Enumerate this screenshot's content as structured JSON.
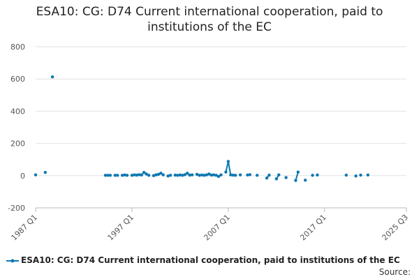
{
  "chart_data": {
    "type": "line",
    "title_lines": [
      "ESA10: CG: D74 Current international cooperation, paid to",
      "institutions of the EC"
    ],
    "xlabel": "",
    "ylabel": "",
    "x_ticks": [
      "1987 Q1",
      "1997 Q1",
      "2007 Q1",
      "2017 Q1",
      "2025 Q3"
    ],
    "y_ticks": [
      800,
      600,
      400,
      200,
      0,
      -200
    ],
    "ylim": [
      -200,
      800
    ],
    "xlim": [
      "1987 Q1",
      "2025 Q3"
    ],
    "grid": "horizontal",
    "legend_position": "bottom-left",
    "series": [
      {
        "name": "ESA10: CG: D74 Current international cooperation, paid to institutions of the EC",
        "color": "#0c78b1",
        "points": [
          {
            "x": "1987 Q1",
            "y": 5
          },
          {
            "x": "1988 Q1",
            "y": 20
          },
          {
            "x": "1988 Q4",
            "y": 613
          },
          {
            "x": "1994 Q2",
            "y": 2
          },
          {
            "x": "1994 Q3",
            "y": 2
          },
          {
            "x": "1994 Q4",
            "y": 2
          },
          {
            "x": "1995 Q2",
            "y": 2
          },
          {
            "x": "1995 Q3",
            "y": 2
          },
          {
            "x": "1996 Q1",
            "y": 2
          },
          {
            "x": "1996 Q2",
            "y": 4
          },
          {
            "x": "1996 Q3",
            "y": 2
          },
          {
            "x": "1997 Q1",
            "y": 2
          },
          {
            "x": "1997 Q2",
            "y": 5
          },
          {
            "x": "1997 Q3",
            "y": 3
          },
          {
            "x": "1997 Q4",
            "y": 6
          },
          {
            "x": "1998 Q1",
            "y": 4
          },
          {
            "x": "1998 Q2",
            "y": 20
          },
          {
            "x": "1998 Q3",
            "y": 10
          },
          {
            "x": "1998 Q4",
            "y": 2
          },
          {
            "x": "1999 Q2",
            "y": 0
          },
          {
            "x": "1999 Q3",
            "y": 5
          },
          {
            "x": "1999 Q4",
            "y": 8
          },
          {
            "x": "2000 Q1",
            "y": 15
          },
          {
            "x": "2000 Q2",
            "y": 5
          },
          {
            "x": "2000 Q4",
            "y": -2
          },
          {
            "x": "2001 Q1",
            "y": 2
          },
          {
            "x": "2001 Q3",
            "y": 3
          },
          {
            "x": "2001 Q4",
            "y": 2
          },
          {
            "x": "2002 Q1",
            "y": 4
          },
          {
            "x": "2002 Q2",
            "y": 2
          },
          {
            "x": "2002 Q3",
            "y": 6
          },
          {
            "x": "2002 Q4",
            "y": 15
          },
          {
            "x": "2003 Q1",
            "y": 3
          },
          {
            "x": "2003 Q2",
            "y": 5
          },
          {
            "x": "2003 Q4",
            "y": 8
          },
          {
            "x": "2004 Q1",
            "y": 2
          },
          {
            "x": "2004 Q2",
            "y": 4
          },
          {
            "x": "2004 Q3",
            "y": 2
          },
          {
            "x": "2004 Q4",
            "y": 5
          },
          {
            "x": "2005 Q1",
            "y": 10
          },
          {
            "x": "2005 Q2",
            "y": 3
          },
          {
            "x": "2005 Q3",
            "y": 5
          },
          {
            "x": "2005 Q4",
            "y": 2
          },
          {
            "x": "2006 Q1",
            "y": -5
          },
          {
            "x": "2006 Q2",
            "y": 5
          },
          {
            "x": "2006 Q4",
            "y": 22
          },
          {
            "x": "2007 Q1",
            "y": 88
          },
          {
            "x": "2007 Q2",
            "y": 5
          },
          {
            "x": "2007 Q3",
            "y": 3
          },
          {
            "x": "2007 Q4",
            "y": 2
          },
          {
            "x": "2008 Q2",
            "y": 5
          },
          {
            "x": "2009 Q1",
            "y": 4
          },
          {
            "x": "2009 Q2",
            "y": 6
          },
          {
            "x": "2010 Q1",
            "y": 2
          },
          {
            "x": "2011 Q1",
            "y": -15
          },
          {
            "x": "2011 Q2",
            "y": 3
          },
          {
            "x": "2012 Q1",
            "y": -20
          },
          {
            "x": "2012 Q2",
            "y": 5
          },
          {
            "x": "2013 Q1",
            "y": -12
          },
          {
            "x": "2014 Q1",
            "y": -30
          },
          {
            "x": "2014 Q2",
            "y": 22
          },
          {
            "x": "2015 Q1",
            "y": -28
          },
          {
            "x": "2015 Q4",
            "y": 2
          },
          {
            "x": "2016 Q2",
            "y": 4
          },
          {
            "x": "2019 Q2",
            "y": 3
          },
          {
            "x": "2020 Q2",
            "y": -2
          },
          {
            "x": "2020 Q4",
            "y": 3
          },
          {
            "x": "2021 Q3",
            "y": 4
          }
        ]
      }
    ]
  },
  "footer": {
    "source_label": "Source:"
  }
}
